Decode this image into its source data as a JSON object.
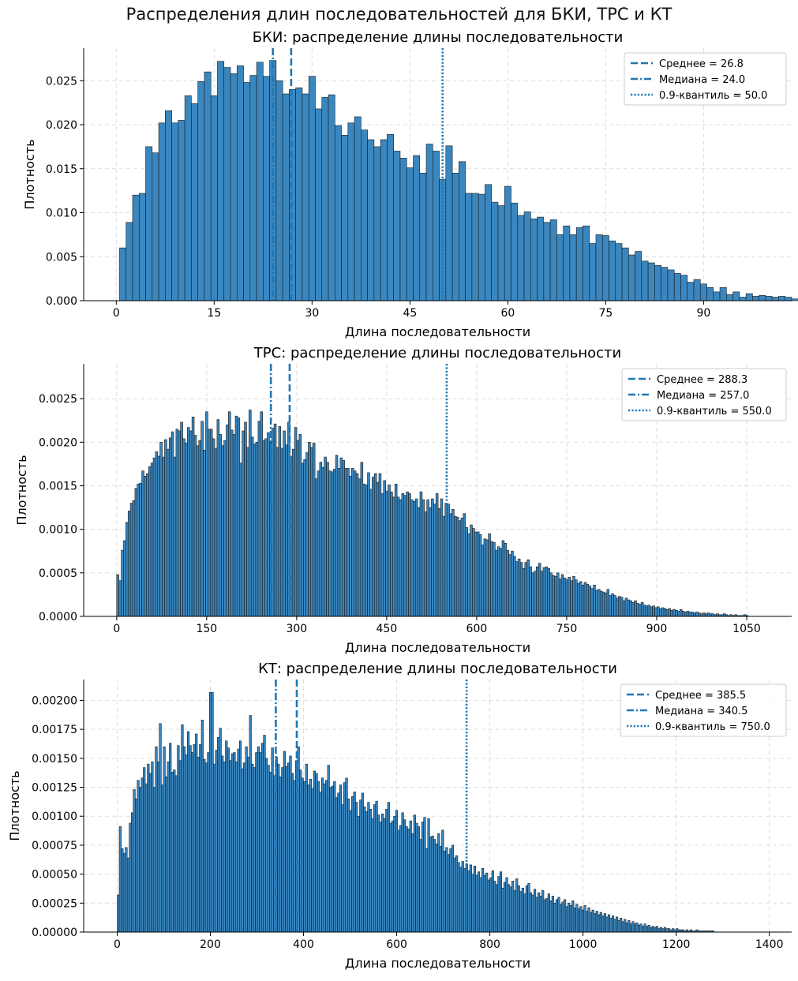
{
  "figure": {
    "suptitle": "Распределения длин последовательностей для БКИ, ТРС и КТ"
  },
  "colors": {
    "bar_fill": "#3a87c0",
    "bar_edge": "#1a1a1a",
    "line": "#1f77b4",
    "grid": "#dddddd"
  },
  "chart_data": [
    {
      "type": "bar",
      "title": "БКИ: распределение длины последовательности",
      "xlabel": "Длина последовательности",
      "ylabel": "Плотность",
      "xlim": [
        -5,
        103.5
      ],
      "ylim": [
        0,
        0.0287
      ],
      "xticks": [
        0,
        15,
        30,
        45,
        60,
        75,
        90
      ],
      "xtick_labels": [
        "0",
        "15",
        "30",
        "45",
        "60",
        "75",
        "90"
      ],
      "yticks": [
        0,
        0.005,
        0.01,
        0.015,
        0.02,
        0.025
      ],
      "ytick_labels": [
        "0.000",
        "0.005",
        "0.010",
        "0.015",
        "0.020",
        "0.025"
      ],
      "bin_start": 0.5,
      "bin_width": 1.0,
      "values": [
        0.006,
        0.0089,
        0.012,
        0.0122,
        0.0175,
        0.0168,
        0.0202,
        0.0216,
        0.0202,
        0.0205,
        0.0233,
        0.0224,
        0.0249,
        0.026,
        0.0233,
        0.0272,
        0.0265,
        0.0258,
        0.0267,
        0.0248,
        0.0256,
        0.0271,
        0.0255,
        0.0273,
        0.025,
        0.0235,
        0.024,
        0.0242,
        0.0235,
        0.0255,
        0.0218,
        0.0231,
        0.0234,
        0.0199,
        0.0188,
        0.0202,
        0.0209,
        0.0194,
        0.0183,
        0.0175,
        0.0183,
        0.0189,
        0.017,
        0.0162,
        0.0151,
        0.0165,
        0.0145,
        0.0178,
        0.017,
        0.0138,
        0.0176,
        0.0145,
        0.0158,
        0.0122,
        0.0122,
        0.0121,
        0.0132,
        0.0112,
        0.0108,
        0.013,
        0.0111,
        0.0097,
        0.0101,
        0.0093,
        0.0095,
        0.0089,
        0.0092,
        0.0075,
        0.0085,
        0.0075,
        0.0083,
        0.0085,
        0.0065,
        0.0075,
        0.0074,
        0.0068,
        0.0065,
        0.006,
        0.0052,
        0.0056,
        0.0045,
        0.0043,
        0.004,
        0.0038,
        0.0035,
        0.0031,
        0.0029,
        0.0021,
        0.0024,
        0.0019,
        0.0015,
        0.001,
        0.0015,
        0.0007,
        0.001,
        0.0004,
        0.0008,
        0.0005,
        0.0006,
        0.0005,
        0.0004,
        0.0005,
        0.0004,
        0.0002,
        0.0001,
        0.0001,
        0.0001,
        0.0002,
        0.0001,
        0.0001,
        0.0001,
        0.0001,
        0.0002,
        0.0001,
        0.0001,
        0.0001,
        0.0001
      ],
      "lines": [
        {
          "label": "Среднее = 26.8",
          "x": 26.8,
          "style": "dashed"
        },
        {
          "label": "Медиана = 24.0",
          "x": 24.0,
          "style": "dashdot"
        },
        {
          "label": "0.9-квантиль = 50.0",
          "x": 50.0,
          "style": "dotted"
        }
      ],
      "legend_position": "top-right",
      "grid": true
    },
    {
      "type": "bar",
      "title": "ТРС: распределение длины последовательности",
      "xlabel": "Длина последовательности",
      "ylabel": "Плотность",
      "xlim": [
        -55,
        1125
      ],
      "ylim": [
        0,
        0.0029
      ],
      "xticks": [
        0,
        150,
        300,
        450,
        600,
        750,
        900,
        1050
      ],
      "xtick_labels": [
        "0",
        "150",
        "300",
        "450",
        "600",
        "750",
        "900",
        "1050"
      ],
      "yticks": [
        0,
        0.0005,
        0.001,
        0.0015,
        0.002,
        0.0025
      ],
      "ytick_labels": [
        "0.0000",
        "0.0005",
        "0.0010",
        "0.0015",
        "0.0020",
        "0.0025"
      ],
      "bin_start": 0,
      "bin_width": 3.8,
      "values": [
        0.00048,
        0.00041,
        0.00076,
        0.00087,
        0.00108,
        0.00121,
        0.0013,
        0.00133,
        0.00147,
        0.00152,
        0.00153,
        0.00167,
        0.00161,
        0.00164,
        0.00172,
        0.00176,
        0.00182,
        0.00189,
        0.00184,
        0.002,
        0.00183,
        0.00203,
        0.00192,
        0.00205,
        0.00212,
        0.00183,
        0.00215,
        0.00213,
        0.00223,
        0.00204,
        0.00199,
        0.00217,
        0.00213,
        0.00229,
        0.00208,
        0.00196,
        0.00202,
        0.00224,
        0.00191,
        0.00235,
        0.00215,
        0.00215,
        0.00204,
        0.00193,
        0.00226,
        0.00209,
        0.00196,
        0.00202,
        0.0022,
        0.00235,
        0.00214,
        0.00209,
        0.0023,
        0.00228,
        0.00176,
        0.00213,
        0.00223,
        0.00194,
        0.00237,
        0.00206,
        0.00198,
        0.002,
        0.00224,
        0.00235,
        0.00202,
        0.00204,
        0.00211,
        0.002,
        0.00216,
        0.00221,
        0.00194,
        0.00218,
        0.00193,
        0.00213,
        0.00197,
        0.00223,
        0.00184,
        0.00192,
        0.00217,
        0.00202,
        0.00209,
        0.00176,
        0.0018,
        0.00188,
        0.002,
        0.00194,
        0.00199,
        0.00158,
        0.00167,
        0.00177,
        0.00171,
        0.00183,
        0.00177,
        0.00167,
        0.00166,
        0.00169,
        0.00185,
        0.0017,
        0.00182,
        0.00179,
        0.0017,
        0.0017,
        0.00161,
        0.0017,
        0.00167,
        0.00164,
        0.00158,
        0.00177,
        0.00152,
        0.00151,
        0.00165,
        0.00146,
        0.0016,
        0.00164,
        0.00154,
        0.00164,
        0.00141,
        0.00156,
        0.00144,
        0.00151,
        0.00143,
        0.00137,
        0.00152,
        0.00137,
        0.00134,
        0.00141,
        0.00139,
        0.00143,
        0.00141,
        0.00134,
        0.00132,
        0.00135,
        0.00125,
        0.00143,
        0.00134,
        0.0012,
        0.00134,
        0.00125,
        0.00135,
        0.00129,
        0.00141,
        0.00124,
        0.00135,
        0.00115,
        0.0013,
        0.00129,
        0.00118,
        0.00123,
        0.00115,
        0.00114,
        0.0011,
        0.00113,
        0.00118,
        0.00102,
        0.00095,
        0.00105,
        0.00101,
        0.00097,
        0.00097,
        0.00094,
        0.00082,
        0.00089,
        0.00088,
        0.00095,
        0.00086,
        0.00085,
        0.00076,
        0.0008,
        0.00078,
        0.00087,
        0.00084,
        0.00076,
        0.00071,
        0.00075,
        0.00069,
        0.00063,
        0.00066,
        0.00062,
        0.00055,
        0.00062,
        0.00065,
        0.00057,
        0.0005,
        0.00052,
        0.00057,
        0.00061,
        0.00052,
        0.00056,
        0.00057,
        0.00055,
        0.0005,
        0.00047,
        0.00046,
        0.0005,
        0.00043,
        0.00048,
        0.00044,
        0.00042,
        0.00045,
        0.00041,
        0.00046,
        0.00042,
        0.00038,
        0.0004,
        0.00036,
        0.00039,
        0.00037,
        0.00035,
        0.00032,
        0.00036,
        0.0003,
        0.00031,
        0.00029,
        0.00028,
        0.00027,
        0.00031,
        0.00024,
        0.00026,
        0.00024,
        0.00021,
        0.00023,
        0.00022,
        0.00018,
        0.00021,
        0.00019,
        0.00018,
        0.00016,
        0.00018,
        0.00015,
        0.00014,
        0.00016,
        0.00013,
        0.00012,
        0.00013,
        0.00011,
        0.00012,
        0.0001,
        0.00011,
        9e-05,
        0.0001,
        9e-05,
        8e-05,
        9e-05,
        7e-05,
        8e-05,
        7e-05,
        6e-05,
        8e-05,
        6e-05,
        5e-05,
        6e-05,
        5e-05,
        5e-05,
        4e-05,
        5e-05,
        4e-05,
        3e-05,
        4e-05,
        3e-05,
        4e-05,
        3e-05,
        3e-05,
        2e-05,
        3e-05,
        2e-05,
        2e-05,
        3e-05,
        2e-05,
        1e-05,
        2e-05,
        1e-05,
        2e-05,
        1e-05,
        1e-05,
        1e-05,
        2e-05,
        1e-05
      ],
      "lines": [
        {
          "label": "Среднее = 288.3",
          "x": 288.3,
          "style": "dashed"
        },
        {
          "label": "Медиана = 257.0",
          "x": 257.0,
          "style": "dashdot"
        },
        {
          "label": "0.9-квантиль = 550.0",
          "x": 550.0,
          "style": "dotted"
        }
      ],
      "legend_position": "top-right",
      "grid": true
    },
    {
      "type": "bar",
      "title": "КТ: распределение длины последовательности",
      "xlabel": "Длина последовательности",
      "ylabel": "Плотность",
      "xlim": [
        -72,
        1448
      ],
      "ylim": [
        0,
        0.00218
      ],
      "xticks": [
        0,
        200,
        400,
        600,
        800,
        1000,
        1200,
        1400
      ],
      "xtick_labels": [
        "0",
        "200",
        "400",
        "600",
        "800",
        "1000",
        "1200",
        "1400"
      ],
      "yticks": [
        0,
        0.00025,
        0.0005,
        0.00075,
        0.001,
        0.00125,
        0.0015,
        0.00175,
        0.002
      ],
      "ytick_labels": [
        "0.00000",
        "0.00025",
        "0.00050",
        "0.00075",
        "0.00100",
        "0.00125",
        "0.00150",
        "0.00175",
        "0.00200"
      ],
      "bin_start": 0,
      "bin_width": 4.3,
      "values": [
        0.00032,
        0.00091,
        0.00072,
        0.00068,
        0.00073,
        0.00064,
        0.00094,
        0.00103,
        0.00123,
        0.00115,
        0.00131,
        0.00125,
        0.00133,
        0.00142,
        0.00128,
        0.00145,
        0.00137,
        0.00147,
        0.00125,
        0.0016,
        0.00147,
        0.0018,
        0.00127,
        0.0016,
        0.00134,
        0.00147,
        0.00163,
        0.00138,
        0.0014,
        0.00135,
        0.00161,
        0.00148,
        0.00179,
        0.0016,
        0.00153,
        0.00173,
        0.00161,
        0.00155,
        0.00162,
        0.00171,
        0.00151,
        0.00162,
        0.00183,
        0.00149,
        0.00146,
        0.00155,
        0.00207,
        0.00207,
        0.00145,
        0.00157,
        0.00168,
        0.00176,
        0.00152,
        0.00147,
        0.00165,
        0.00159,
        0.00148,
        0.00154,
        0.00155,
        0.00147,
        0.00158,
        0.00165,
        0.00141,
        0.00146,
        0.0016,
        0.00151,
        0.00187,
        0.00145,
        0.00142,
        0.00155,
        0.0016,
        0.00155,
        0.00163,
        0.0017,
        0.0015,
        0.00144,
        0.00138,
        0.00159,
        0.00135,
        0.00151,
        0.00145,
        0.00134,
        0.00142,
        0.00156,
        0.00143,
        0.00146,
        0.00152,
        0.00137,
        0.00131,
        0.00148,
        0.0016,
        0.0014,
        0.00133,
        0.0013,
        0.00145,
        0.00127,
        0.00132,
        0.00124,
        0.00139,
        0.00137,
        0.0013,
        0.00121,
        0.00133,
        0.00128,
        0.00131,
        0.00144,
        0.00125,
        0.00126,
        0.0013,
        0.00116,
        0.0012,
        0.00127,
        0.0011,
        0.00129,
        0.00133,
        0.00115,
        0.00105,
        0.00117,
        0.00121,
        0.00112,
        0.001,
        0.00114,
        0.0012,
        0.00108,
        0.00104,
        0.00112,
        0.00106,
        0.00098,
        0.0011,
        0.00113,
        0.00101,
        0.00095,
        0.00102,
        0.00098,
        0.00106,
        0.00112,
        0.00094,
        0.00096,
        0.001,
        0.00105,
        0.00088,
        0.00092,
        0.00103,
        0.00097,
        0.00091,
        0.00089,
        0.00096,
        0.00085,
        0.00101,
        0.00094,
        0.00091,
        0.0008,
        0.00095,
        0.00099,
        0.00072,
        0.00098,
        0.00082,
        0.00083,
        0.0008,
        0.00076,
        0.00085,
        0.00074,
        0.00088,
        0.0007,
        0.00073,
        0.00067,
        0.00072,
        0.00075,
        0.00064,
        0.00066,
        0.0006,
        0.00056,
        0.00061,
        0.00055,
        0.00059,
        0.00053,
        0.00058,
        0.0005,
        0.00057,
        0.00049,
        0.00052,
        0.00047,
        0.00055,
        0.00049,
        0.00051,
        0.00045,
        0.00047,
        0.00053,
        0.00044,
        0.00041,
        0.00048,
        0.00052,
        0.00038,
        0.00043,
        0.00047,
        0.00041,
        0.00039,
        0.00044,
        0.00036,
        0.00046,
        0.0004,
        0.00035,
        0.00038,
        0.00033,
        0.0004,
        0.00042,
        0.00034,
        0.00032,
        0.00037,
        0.0003,
        0.00034,
        0.00031,
        0.00036,
        0.00028,
        0.00029,
        0.00033,
        0.00027,
        0.00031,
        0.00025,
        0.00028,
        0.0003,
        0.00024,
        0.00026,
        0.00028,
        0.00022,
        0.00025,
        0.00023,
        0.00027,
        0.00021,
        0.00024,
        0.0002,
        0.00022,
        0.00019,
        0.00023,
        0.00018,
        0.00021,
        0.00017,
        0.00019,
        0.00016,
        0.00018,
        0.00015,
        0.00017,
        0.00014,
        0.00016,
        0.00013,
        0.00015,
        0.00012,
        0.00014,
        0.00011,
        0.00013,
        0.0001,
        0.00012,
        9e-05,
        0.00011,
        8e-05,
        0.0001,
        7e-05,
        9e-05,
        7e-05,
        8e-05,
        6e-05,
        7e-05,
        5e-05,
        7e-05,
        5e-05,
        6e-05,
        4e-05,
        5e-05,
        4e-05,
        5e-05,
        3e-05,
        4e-05,
        3e-05,
        4e-05,
        3e-05,
        3e-05,
        2e-05,
        3e-05,
        2e-05,
        3e-05,
        2e-05,
        2e-05,
        2e-05,
        1e-05,
        2e-05,
        1e-05,
        2e-05,
        1e-05,
        1e-05,
        2e-05,
        1e-05,
        1e-05,
        1e-05,
        1e-05,
        1e-05,
        1e-05,
        1e-05,
        1e-05
      ],
      "lines": [
        {
          "label": "Среднее = 385.5",
          "x": 385.5,
          "style": "dashed"
        },
        {
          "label": "Медиана = 340.5",
          "x": 340.5,
          "style": "dashdot"
        },
        {
          "label": "0.9-квантиль = 750.0",
          "x": 750.0,
          "style": "dotted"
        }
      ],
      "legend_position": "top-right",
      "grid": true
    }
  ]
}
